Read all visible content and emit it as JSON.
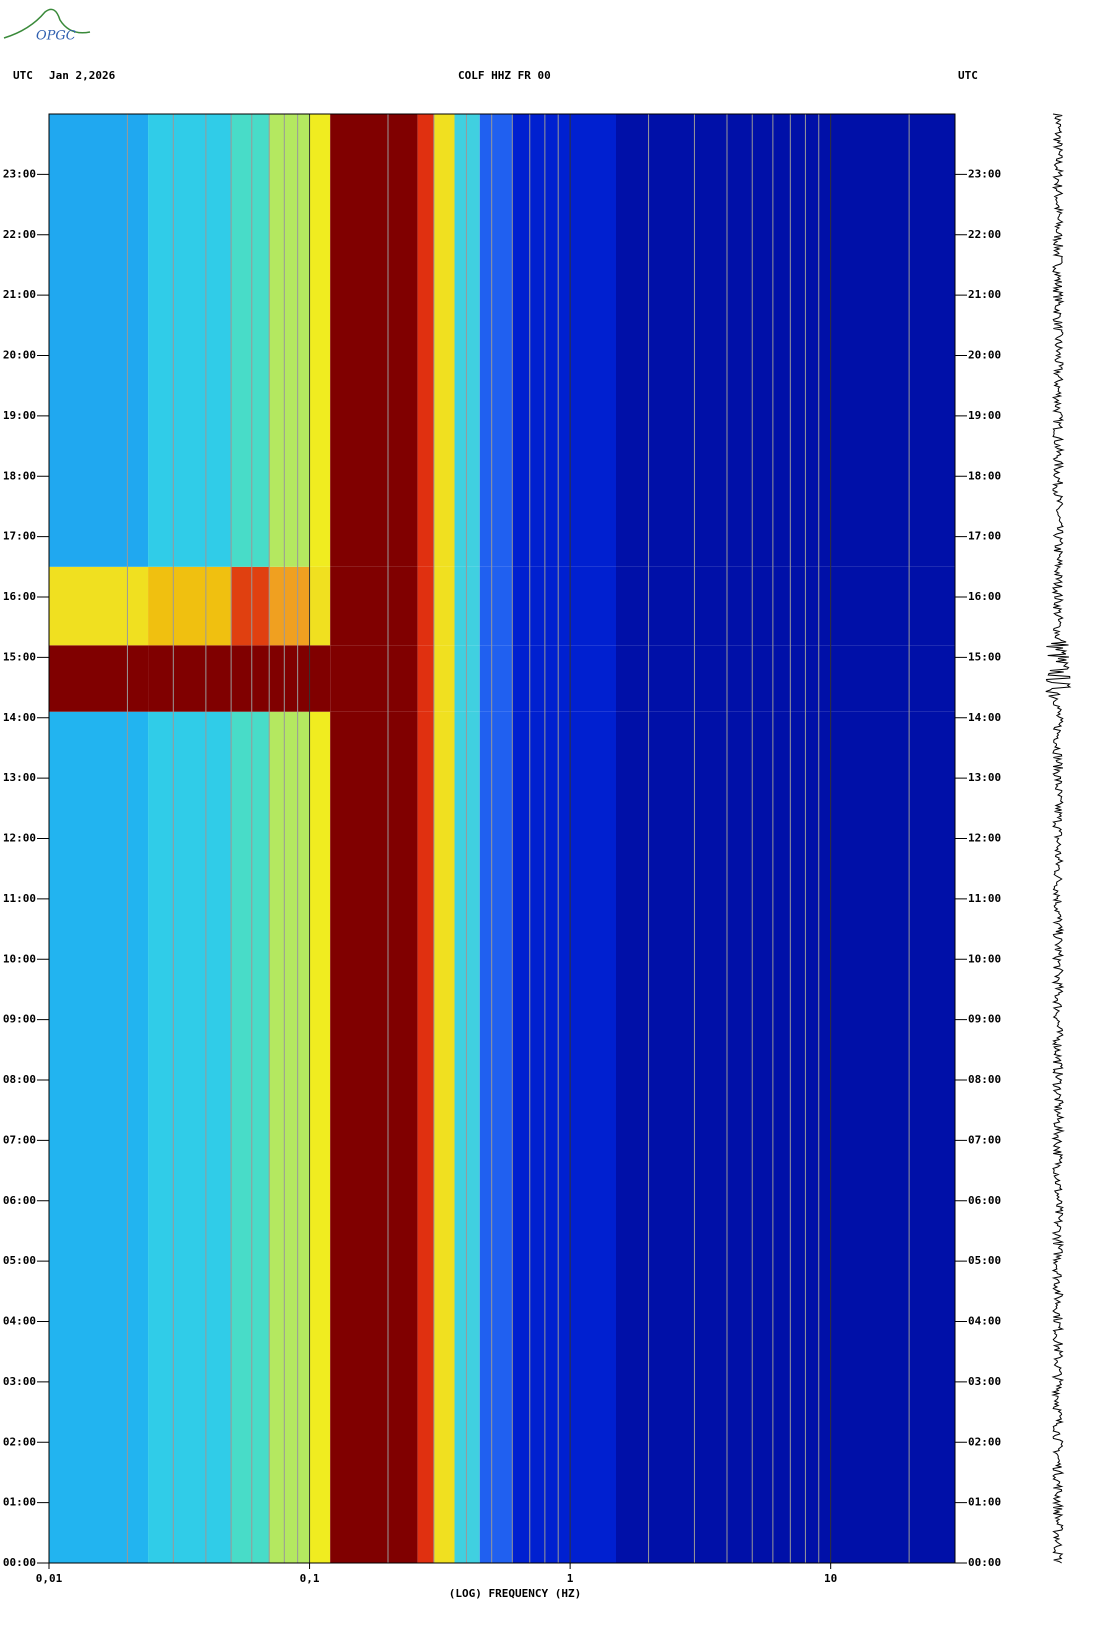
{
  "chart_data": {
    "type": "spectrogram",
    "logo": "OPGC",
    "header_left": "UTC",
    "date": "Jan 2,2026",
    "title": "COLF HHZ FR 00",
    "header_right": "UTC",
    "xlabel": "(LOG) FREQUENCY (HZ)",
    "xscale": "log",
    "xlim": [
      0.01,
      30
    ],
    "xticks": [
      {
        "value": 0.01,
        "label": "0,01"
      },
      {
        "value": 0.1,
        "label": "0,1"
      },
      1,
      10
    ],
    "xminorticks": [
      0.02,
      0.03,
      0.04,
      0.05,
      0.06,
      0.07,
      0.08,
      0.09,
      0.2,
      0.3,
      0.4,
      0.5,
      0.6,
      0.7,
      0.8,
      0.9,
      2,
      3,
      4,
      5,
      6,
      7,
      8,
      9,
      20
    ],
    "ylim": [
      0,
      24
    ],
    "yticks": [
      {
        "value": 0,
        "label": "00:00"
      },
      {
        "value": 1,
        "label": "01:00"
      },
      {
        "value": 2,
        "label": "02:00"
      },
      {
        "value": 3,
        "label": "03:00"
      },
      {
        "value": 4,
        "label": "04:00"
      },
      {
        "value": 5,
        "label": "05:00"
      },
      {
        "value": 6,
        "label": "06:00"
      },
      {
        "value": 7,
        "label": "07:00"
      },
      {
        "value": 8,
        "label": "08:00"
      },
      {
        "value": 9,
        "label": "09:00"
      },
      {
        "value": 10,
        "label": "10:00"
      },
      {
        "value": 11,
        "label": "11:00"
      },
      {
        "value": 12,
        "label": "12:00"
      },
      {
        "value": 13,
        "label": "13:00"
      },
      {
        "value": 14,
        "label": "14:00"
      },
      {
        "value": 15,
        "label": "15:00"
      },
      {
        "value": 16,
        "label": "16:00"
      },
      {
        "value": 17,
        "label": "17:00"
      },
      {
        "value": 18,
        "label": "18:00"
      },
      {
        "value": 19,
        "label": "19:00"
      },
      {
        "value": 20,
        "label": "20:00"
      },
      {
        "value": 21,
        "label": "21:00"
      },
      {
        "value": 22,
        "label": "22:00"
      },
      {
        "value": 23,
        "label": "23:00"
      }
    ],
    "freq_edges": [
      0.01,
      0.024,
      0.05,
      0.07,
      0.1,
      0.12,
      0.26,
      0.3,
      0.36,
      0.45,
      0.6,
      1.5,
      30
    ],
    "time_edges": [
      0,
      14.1,
      15.2,
      16.5,
      24
    ],
    "colors": [
      [
        "#22b4f0",
        "#30cce8",
        "#48dcc8",
        "#b4e860",
        "#f0ec20",
        "#800000",
        "#e03010",
        "#f0e020",
        "#40d0e0",
        "#2060f0",
        "#0020d0",
        "#0010a8"
      ],
      [
        "#800000",
        "#800000",
        "#800000",
        "#800000",
        "#800000",
        "#800000",
        "#e03010",
        "#f0e020",
        "#40d0e0",
        "#2060f0",
        "#0020d0",
        "#0010a8"
      ],
      [
        "#f0e020",
        "#f0c010",
        "#e04010",
        "#f0a020",
        "#f0e020",
        "#800000",
        "#e03010",
        "#f0e020",
        "#40d0e0",
        "#2060f0",
        "#0020d0",
        "#0010a8"
      ],
      [
        "#20a8f0",
        "#30cce8",
        "#48dcc8",
        "#b4e860",
        "#f0ec20",
        "#800000",
        "#e03010",
        "#f0e020",
        "#40d0e0",
        "#2060f0",
        "#0020d0",
        "#0010a8"
      ]
    ]
  }
}
